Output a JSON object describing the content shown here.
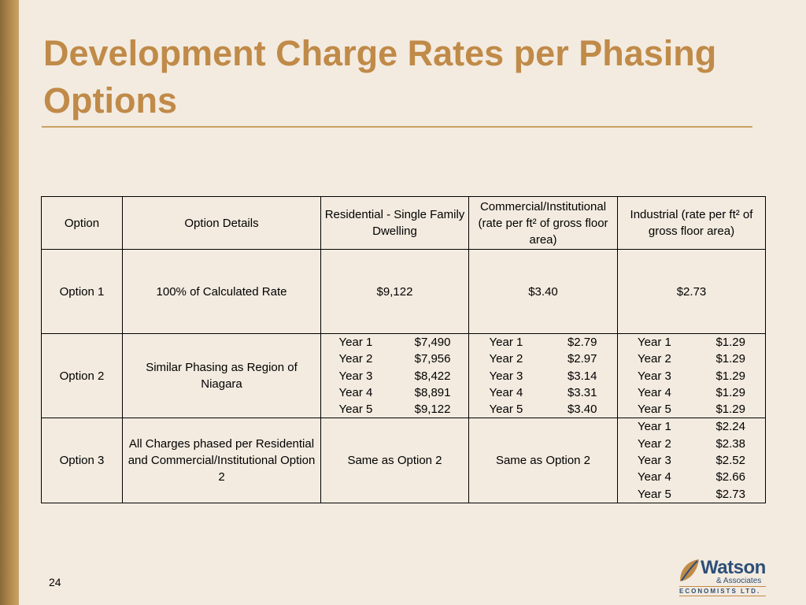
{
  "slide": {
    "title": "Development Charge Rates per Phasing Options",
    "page_number": "24"
  },
  "table": {
    "headers": {
      "option": "Option",
      "details": "Option Details",
      "residential": "Residential - Single Family Dwelling",
      "commercial": "Commercial/Institutional (rate per ft² of gross floor area)",
      "industrial": "Industrial  (rate per ft² of gross floor area)"
    },
    "option1": {
      "label": "Option 1",
      "details": "100% of Calculated Rate",
      "residential": "$9,122",
      "commercial": "$3.40",
      "industrial": "$2.73"
    },
    "option2": {
      "label": "Option 2",
      "details": "Similar Phasing as Region of Niagara",
      "residential": [
        {
          "year": "Year 1",
          "value": "$7,490"
        },
        {
          "year": "Year 2",
          "value": "$7,956"
        },
        {
          "year": "Year 3",
          "value": "$8,422"
        },
        {
          "year": "Year 4",
          "value": "$8,891"
        },
        {
          "year": "Year 5",
          "value": "$9,122"
        }
      ],
      "commercial": [
        {
          "year": "Year 1",
          "value": "$2.79"
        },
        {
          "year": "Year 2",
          "value": "$2.97"
        },
        {
          "year": "Year 3",
          "value": "$3.14"
        },
        {
          "year": "Year 4",
          "value": "$3.31"
        },
        {
          "year": "Year 5",
          "value": "$3.40"
        }
      ],
      "industrial": [
        {
          "year": "Year 1",
          "value": "$1.29"
        },
        {
          "year": "Year 2",
          "value": "$1.29"
        },
        {
          "year": "Year 3",
          "value": "$1.29"
        },
        {
          "year": "Year 4",
          "value": "$1.29"
        },
        {
          "year": "Year 5",
          "value": "$1.29"
        }
      ]
    },
    "option3": {
      "label": "Option 3",
      "details": "All Charges phased per Residential and Commercial/Institutional Option 2",
      "residential": "Same as Option 2",
      "commercial": "Same as Option 2",
      "industrial": [
        {
          "year": "Year 1",
          "value": "$2.24"
        },
        {
          "year": "Year 2",
          "value": "$2.38"
        },
        {
          "year": "Year 3",
          "value": "$2.52"
        },
        {
          "year": "Year 4",
          "value": "$2.66"
        },
        {
          "year": "Year 5",
          "value": "$2.73"
        }
      ]
    }
  },
  "logo": {
    "name": "Watson",
    "sub": "& Associates",
    "tagline": "ECONOMISTS LTD."
  },
  "colors": {
    "title": "#c08a48",
    "background": "#f3ebe0",
    "logo_blue": "#2d4f78"
  }
}
